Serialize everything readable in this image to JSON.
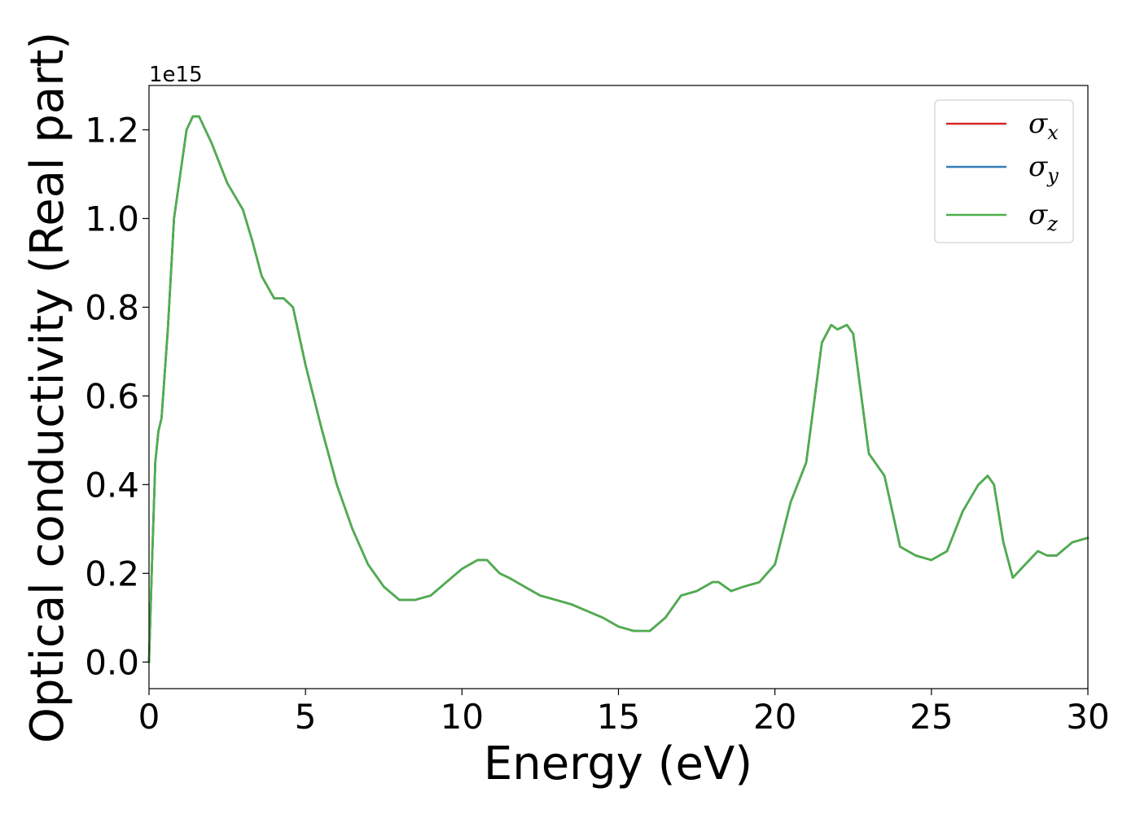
{
  "chart_data": {
    "type": "line",
    "title": "",
    "xlabel": "Energy (eV)",
    "ylabel": "Optical conductivity (Real part)",
    "y_offset_label": "1e15",
    "xlim": [
      0,
      30
    ],
    "ylim": [
      -0.06,
      1.3
    ],
    "xticks": [
      0,
      5,
      10,
      15,
      20,
      25,
      30
    ],
    "xtick_labels": [
      "0",
      "5",
      "10",
      "15",
      "20",
      "25",
      "30"
    ],
    "yticks": [
      0.0,
      0.2,
      0.4,
      0.6,
      0.8,
      1.0,
      1.2
    ],
    "ytick_labels": [
      "0.0",
      "0.2",
      "0.4",
      "0.6",
      "0.8",
      "1.0",
      "1.2"
    ],
    "grid": false,
    "legend_position": "top-right",
    "series": [
      {
        "name": "σx",
        "symbol": "σ",
        "subscript": "x",
        "color": "#d62728"
      },
      {
        "name": "σy",
        "symbol": "σ",
        "subscript": "y",
        "color": "#377eb8"
      },
      {
        "name": "σz",
        "symbol": "σ",
        "subscript": "z",
        "color": "#4daf4a"
      }
    ],
    "x": [
      0,
      0.1,
      0.2,
      0.3,
      0.4,
      0.6,
      0.8,
      1.0,
      1.2,
      1.4,
      1.6,
      1.8,
      2.0,
      2.5,
      3.0,
      3.3,
      3.6,
      4.0,
      4.3,
      4.6,
      5.0,
      5.5,
      6.0,
      6.5,
      7.0,
      7.5,
      8.0,
      8.5,
      9.0,
      9.5,
      10.0,
      10.5,
      10.8,
      11.2,
      11.5,
      12.0,
      12.5,
      13.0,
      13.5,
      14.0,
      14.5,
      15.0,
      15.5,
      16.0,
      16.5,
      17.0,
      17.5,
      18.0,
      18.2,
      18.6,
      19.0,
      19.5,
      20.0,
      20.5,
      21.0,
      21.5,
      21.8,
      22.0,
      22.3,
      22.5,
      23.0,
      23.5,
      24.0,
      24.5,
      25.0,
      25.5,
      26.0,
      26.5,
      26.8,
      27.0,
      27.3,
      27.6,
      28.0,
      28.4,
      28.7,
      29.0,
      29.5,
      30.0
    ],
    "y": [
      0.0,
      0.23,
      0.45,
      0.52,
      0.55,
      0.75,
      1.0,
      1.1,
      1.2,
      1.23,
      1.23,
      1.2,
      1.17,
      1.08,
      1.02,
      0.95,
      0.87,
      0.82,
      0.82,
      0.8,
      0.67,
      0.53,
      0.4,
      0.3,
      0.22,
      0.17,
      0.14,
      0.14,
      0.15,
      0.18,
      0.21,
      0.23,
      0.23,
      0.2,
      0.19,
      0.17,
      0.15,
      0.14,
      0.13,
      0.115,
      0.1,
      0.08,
      0.07,
      0.07,
      0.1,
      0.15,
      0.16,
      0.18,
      0.18,
      0.16,
      0.17,
      0.18,
      0.22,
      0.36,
      0.45,
      0.72,
      0.76,
      0.75,
      0.76,
      0.74,
      0.47,
      0.42,
      0.26,
      0.24,
      0.23,
      0.25,
      0.34,
      0.4,
      0.42,
      0.4,
      0.27,
      0.19,
      0.22,
      0.25,
      0.24,
      0.24,
      0.27,
      0.28
    ]
  }
}
